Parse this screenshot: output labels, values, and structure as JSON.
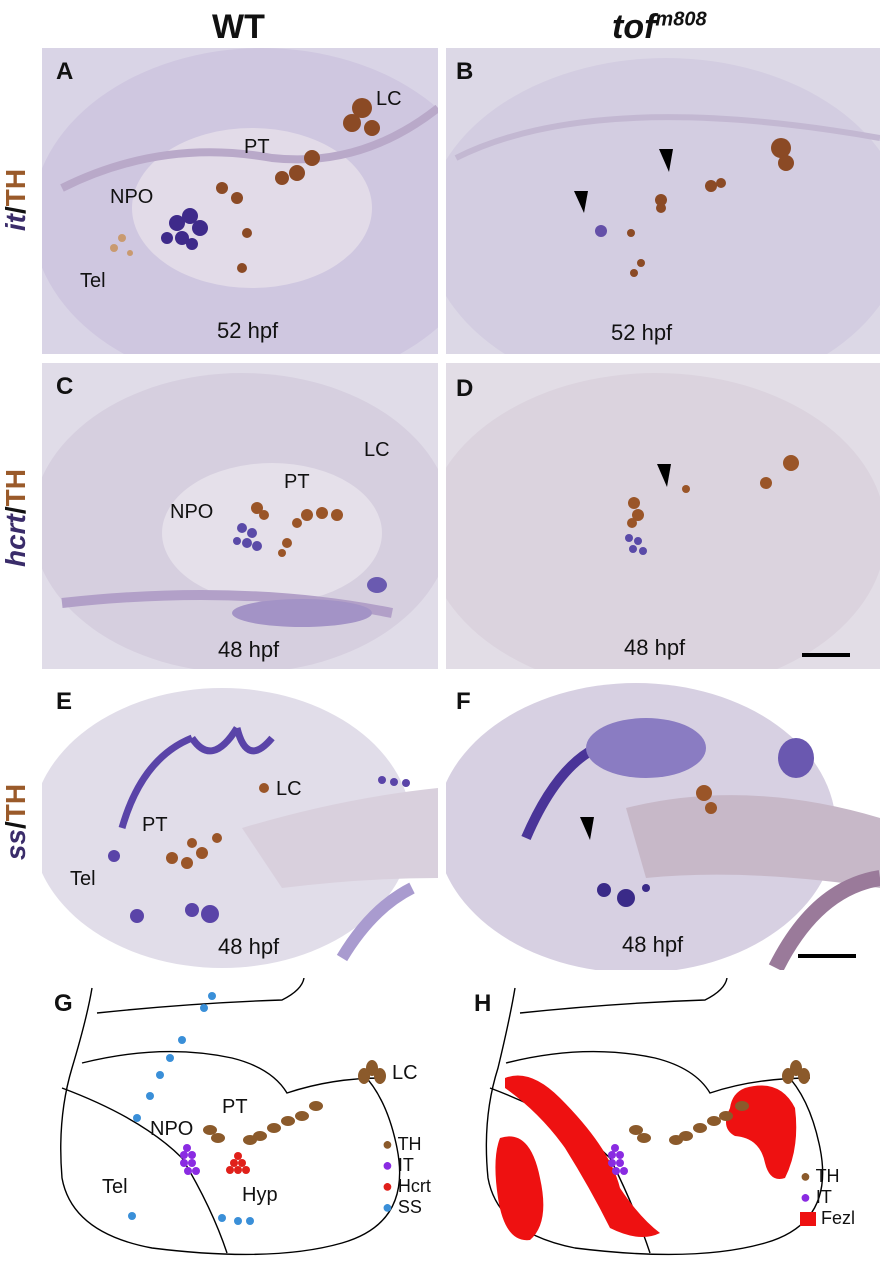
{
  "columns": {
    "wt": "WT",
    "mutant_base": "tof",
    "mutant_sup": "m808"
  },
  "rows": [
    {
      "gene": "it",
      "marker": "TH",
      "sep": "/"
    },
    {
      "gene": "hcrt",
      "marker": "TH",
      "sep": "/"
    },
    {
      "gene": "ss",
      "marker": "TH",
      "sep": "/"
    }
  ],
  "panels": {
    "A": {
      "letter": "A",
      "stage": "52 hpf",
      "regions": [
        "LC",
        "PT",
        "NPO",
        "Tel"
      ]
    },
    "B": {
      "letter": "B",
      "stage": "52 hpf"
    },
    "C": {
      "letter": "C",
      "stage": "48 hpf",
      "regions": [
        "LC",
        "NPO",
        "PT"
      ]
    },
    "D": {
      "letter": "D",
      "stage": "48 hpf"
    },
    "E": {
      "letter": "E",
      "stage": "48 hpf",
      "regions": [
        "LC",
        "PT",
        "Tel"
      ]
    },
    "F": {
      "letter": "F",
      "stage": "48 hpf"
    },
    "G": {
      "letter": "G",
      "regions": [
        "LC",
        "NPO",
        "PT",
        "Tel",
        "Hyp"
      ]
    },
    "H": {
      "letter": "H"
    }
  },
  "legend_g": [
    {
      "label": "TH",
      "color": "#8b5a2b"
    },
    {
      "label": "IT",
      "color": "#8a2be2"
    },
    {
      "label": "Hcrt",
      "color": "#e0201a"
    },
    {
      "label": "SS",
      "color": "#3a8fd8"
    }
  ],
  "legend_h": [
    {
      "label": "TH",
      "color": "#8b5a2b"
    },
    {
      "label": "IT",
      "color": "#8a2be2"
    },
    {
      "label": "Fezl",
      "color": "#ee1111"
    }
  ]
}
